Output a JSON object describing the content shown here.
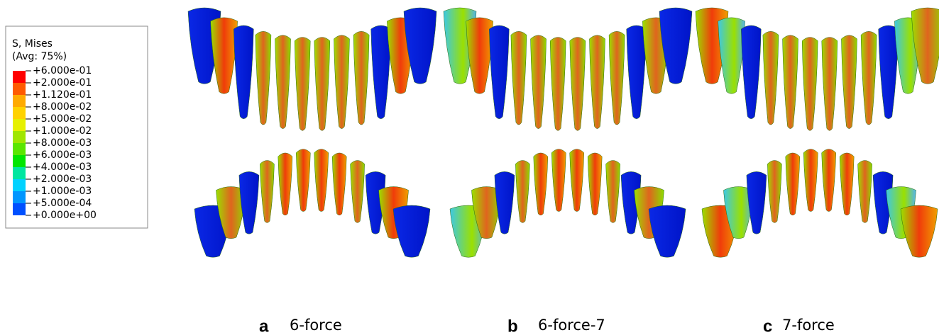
{
  "legend": {
    "title": "S, Mises",
    "subtitle": "(Avg: 75%)",
    "labels": [
      "+6.000e-01",
      "+2.000e-01",
      "+1.120e-01",
      "+8.000e-02",
      "+5.000e-02",
      "+1.000e-02",
      "+8.000e-03",
      "+6.000e-03",
      "+4.000e-03",
      "+2.000e-03",
      "+1.000e-03",
      "+5.000e-04",
      "+0.000e+00"
    ],
    "colors": [
      "#ff0000",
      "#ff5a00",
      "#ffaa00",
      "#ffd200",
      "#e6f000",
      "#a0e600",
      "#5ae600",
      "#00e600",
      "#00e6a0",
      "#00d2ff",
      "#0096ff",
      "#0050ff",
      "#0000ff"
    ]
  },
  "panels": [
    {
      "letter": "a",
      "caption": "6-force"
    },
    {
      "letter": "b",
      "caption": "6-force-7"
    },
    {
      "letter": "c",
      "caption": "7-force"
    }
  ]
}
